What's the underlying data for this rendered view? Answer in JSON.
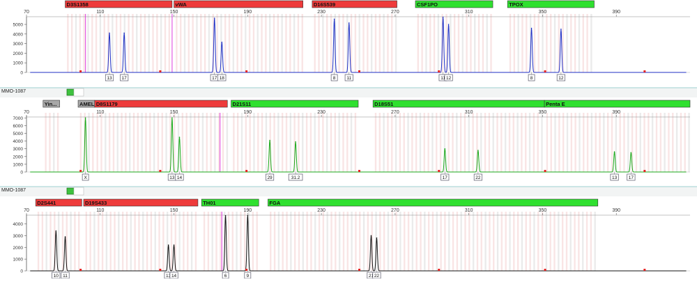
{
  "colors": {
    "red_locus": "#ee3b3b",
    "green_locus": "#2fe02f",
    "gray_locus": "#a8a8a8",
    "blue_trace": "#1f2fc4",
    "green_trace": "#1aa81a",
    "black_trace": "#111111",
    "bin_pink": "#f6dada",
    "bin_gray": "#e2e2e2",
    "marker_magenta": "#dd33dd",
    "panel_border": "#9fd0d0"
  },
  "sample_labels": [
    "MMO-1087",
    "MMO-1087"
  ],
  "chart_data": [
    {
      "type": "line",
      "panel": "blue",
      "xlim": [
        70,
        430
      ],
      "x_ticks": [
        70,
        110,
        150,
        190,
        230,
        270,
        310,
        350,
        390
      ],
      "ylim": [
        0,
        5800
      ],
      "y_ticks": [
        0,
        1000,
        2000,
        3000,
        4000,
        5000
      ],
      "loci": [
        {
          "name": "D3S1358",
          "color": "red",
          "start": 91,
          "end": 149
        },
        {
          "name": "vWA",
          "color": "red",
          "start": 150,
          "end": 220
        },
        {
          "name": "D16S539",
          "color": "red",
          "start": 225,
          "end": 271
        },
        {
          "name": "CSF1PO",
          "color": "green",
          "start": 281,
          "end": 323
        },
        {
          "name": "TPOX",
          "color": "green",
          "start": 331,
          "end": 378
        }
      ],
      "peaks": [
        {
          "x": 115,
          "y": 4100,
          "allele": "13"
        },
        {
          "x": 123,
          "y": 4100,
          "allele": "17"
        },
        {
          "x": 172,
          "y": 5650,
          "allele": "17"
        },
        {
          "x": 176,
          "y": 3150,
          "allele": "18"
        },
        {
          "x": 237,
          "y": 5550,
          "allele": "8"
        },
        {
          "x": 245,
          "y": 5150,
          "allele": "11"
        },
        {
          "x": 296,
          "y": 5750,
          "allele": "11"
        },
        {
          "x": 299,
          "y": 5000,
          "allele": "12"
        },
        {
          "x": 344,
          "y": 4600,
          "allele": "8"
        },
        {
          "x": 360,
          "y": 4500,
          "allele": "12"
        }
      ]
    },
    {
      "type": "line",
      "panel": "green",
      "xlim": [
        70,
        430
      ],
      "x_ticks": [
        70,
        110,
        150,
        190,
        230,
        270,
        310,
        350,
        390
      ],
      "ylim": [
        0,
        7300
      ],
      "y_ticks": [
        0,
        1000,
        2000,
        3000,
        4000,
        5000,
        6000,
        7000
      ],
      "loci": [
        {
          "name": "Yin...",
          "color": "gray",
          "start": 79,
          "end": 88
        },
        {
          "name": "AMEL",
          "color": "gray",
          "start": 98,
          "end": 107
        },
        {
          "name": "D8S1179",
          "color": "red",
          "start": 107,
          "end": 179
        },
        {
          "name": "D21S11",
          "color": "green",
          "start": 181,
          "end": 250
        },
        {
          "name": "D18S51",
          "color": "green",
          "start": 258,
          "end": 351
        },
        {
          "name": "Penta E",
          "color": "green",
          "start": 351,
          "end": 430
        }
      ],
      "peaks": [
        {
          "x": 102,
          "y": 7000,
          "allele": "X"
        },
        {
          "x": 149,
          "y": 7000,
          "allele": "13"
        },
        {
          "x": 153,
          "y": 4500,
          "allele": "14"
        },
        {
          "x": 202,
          "y": 4100,
          "allele": "29"
        },
        {
          "x": 216,
          "y": 3900,
          "allele": "31.2"
        },
        {
          "x": 297,
          "y": 3000,
          "allele": "17"
        },
        {
          "x": 315,
          "y": 2800,
          "allele": "22"
        },
        {
          "x": 389,
          "y": 2600,
          "allele": "13"
        },
        {
          "x": 398,
          "y": 2500,
          "allele": "17"
        }
      ]
    },
    {
      "type": "line",
      "panel": "yellow",
      "xlim": [
        70,
        430
      ],
      "x_ticks": [
        70,
        110,
        150,
        190,
        230,
        270,
        310,
        350,
        390
      ],
      "ylim": [
        0,
        4800
      ],
      "y_ticks": [
        0,
        1000,
        2000,
        3000,
        4000
      ],
      "loci": [
        {
          "name": "D2S441",
          "color": "red",
          "start": 75,
          "end": 100
        },
        {
          "name": "D19S433",
          "color": "red",
          "start": 101,
          "end": 163
        },
        {
          "name": "TH01",
          "color": "green",
          "start": 165,
          "end": 196
        },
        {
          "name": "FGA",
          "color": "green",
          "start": 201,
          "end": 380
        }
      ],
      "peaks": [
        {
          "x": 86,
          "y": 3400,
          "allele": "10"
        },
        {
          "x": 91,
          "y": 2900,
          "allele": "11"
        },
        {
          "x": 147,
          "y": 2200,
          "allele": "13"
        },
        {
          "x": 150,
          "y": 2200,
          "allele": "14"
        },
        {
          "x": 178,
          "y": 4700,
          "allele": "6"
        },
        {
          "x": 190,
          "y": 4700,
          "allele": "9"
        },
        {
          "x": 257,
          "y": 3000,
          "allele": "21"
        },
        {
          "x": 260,
          "y": 2800,
          "allele": "22"
        }
      ]
    }
  ]
}
